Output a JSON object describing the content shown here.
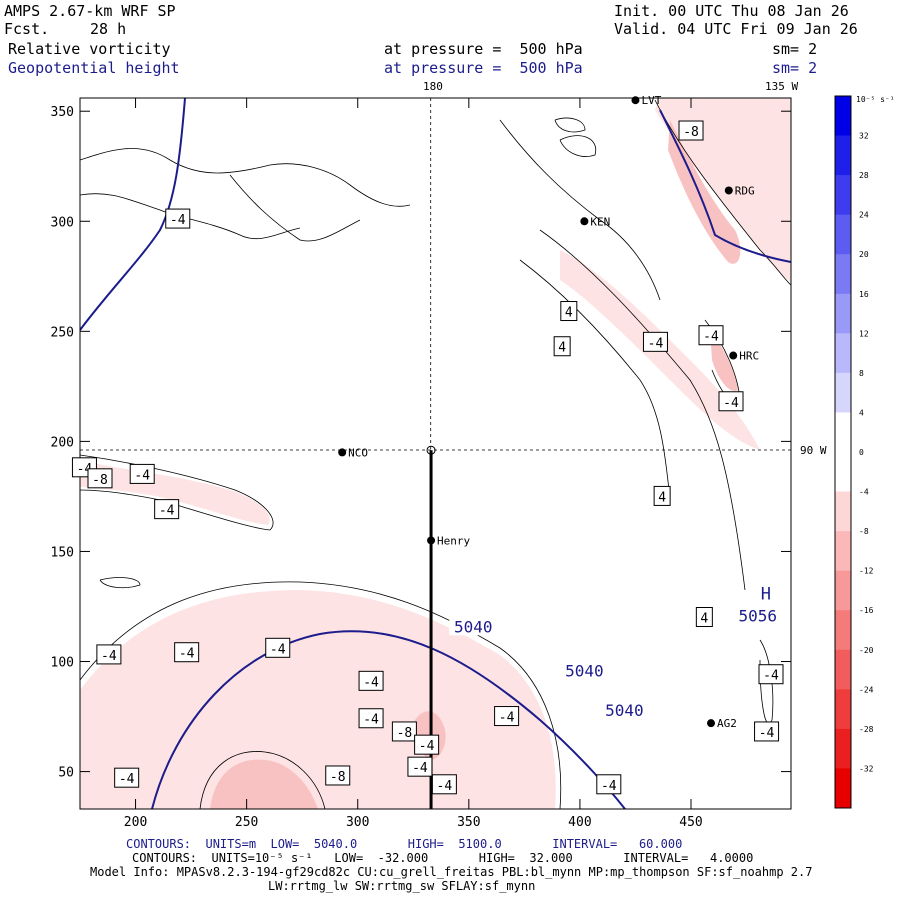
{
  "header": {
    "model": "AMPS 2.67-km WRF SP",
    "fcst_label": "Fcst.",
    "fcst_value": "28 h",
    "init": "Init. 00 UTC Thu 08 Jan 26",
    "valid": "Valid. 04 UTC Fri 09 Jan 26",
    "field1": "Relative vorticity",
    "field1_level": "at pressure =  500 hPa",
    "field1_sm": "sm= 2",
    "field2": "Geopotential height",
    "field2_level": "at pressure =  500 hPa",
    "field2_sm": "sm= 2"
  },
  "map_labels": {
    "lon_180": "180",
    "lon_135w": "135 W",
    "lon_90w": "90 W"
  },
  "stations": [
    {
      "name": "LVT",
      "x": 425,
      "y": 355
    },
    {
      "name": "RDG",
      "x": 467,
      "y": 314
    },
    {
      "name": "KEN",
      "x": 402,
      "y": 300
    },
    {
      "name": "NCO",
      "x": 293,
      "y": 195
    },
    {
      "name": "Henry",
      "x": 333,
      "y": 155
    },
    {
      "name": "HRC",
      "x": 469,
      "y": 239
    },
    {
      "name": "AG2",
      "x": 459,
      "y": 72
    }
  ],
  "colorbar": {
    "unit_label": "10⁻⁵ s⁻¹",
    "ticks": [
      "32",
      "28",
      "24",
      "20",
      "16",
      "12",
      "8",
      "4",
      "0",
      "-4",
      "-8",
      "-12",
      "-16",
      "-20",
      "-24",
      "-28",
      "-32"
    ],
    "colors": [
      "#0000e6",
      "#1f1fea",
      "#3d3dee",
      "#5c5cf2",
      "#7a7af5",
      "#9999f8",
      "#b8b8fb",
      "#d6d6fd",
      "#ffffff",
      "#ffffff",
      "#fdd6d6",
      "#fbb8b8",
      "#f89999",
      "#f57a7a",
      "#f25c5c",
      "#ee3d3d",
      "#ea1f1f",
      "#e60000"
    ]
  },
  "footer": {
    "line1_label": "CONTOURS:  UNITS=m  LOW=  5040.0       HIGH=  5100.0       INTERVAL=   60.000",
    "line2_label": "CONTOURS:  UNITS=10⁻⁵ s⁻¹   LOW=  -32.000       HIGH=  32.000       INTERVAL=   4.0000",
    "line3": "Model Info: MPASv8.2.3-194-gf29cd82c CU:cu_grell_freitas PBL:bl_mynn MP:mp_thompson SF:sf_noahmp 2.7",
    "line4": "LW:rrtmg_lw SW:rrtmg_sw SFLAY:sf_mynn"
  },
  "chart_data": {
    "type": "contour_map",
    "x_range": [
      175,
      495
    ],
    "y_range": [
      33,
      356
    ],
    "x_ticks": [
      200,
      250,
      300,
      350,
      400,
      450
    ],
    "y_ticks": [
      50,
      100,
      150,
      200,
      250,
      300,
      350
    ],
    "x_tick_labels": [
      "200",
      "250",
      "300",
      "350",
      "400",
      "450"
    ],
    "y_tick_labels": [
      "50",
      "100",
      "150",
      "200",
      "250",
      "300",
      "350"
    ],
    "cross_section": {
      "x": 333,
      "y_from": 33,
      "y_to": 196
    },
    "dashed_lon_line_x": 333,
    "dashed_lat_line_y": 195,
    "height_labels": [
      {
        "text": "5040",
        "x": 352,
        "y": 116
      },
      {
        "text": "5040",
        "x": 402,
        "y": 96
      },
      {
        "text": "5040",
        "x": 420,
        "y": 78
      }
    ],
    "high_center": {
      "letter": "H",
      "value": "5056",
      "x": 485,
      "y": 131,
      "x2": 488,
      "y2": 121
    },
    "vort_labels": [
      {
        "t": "-4",
        "x": 177,
        "y": 188
      },
      {
        "t": "-8",
        "x": 184,
        "y": 183
      },
      {
        "t": "-4",
        "x": 203,
        "y": 185
      },
      {
        "t": "-4",
        "x": 214,
        "y": 169
      },
      {
        "t": "-4",
        "x": 219,
        "y": 301
      },
      {
        "t": "4",
        "x": 395,
        "y": 259
      },
      {
        "t": "4",
        "x": 392,
        "y": 243
      },
      {
        "t": "-4",
        "x": 434,
        "y": 245
      },
      {
        "t": "-4",
        "x": 459,
        "y": 248
      },
      {
        "t": "-4",
        "x": 468,
        "y": 218
      },
      {
        "t": "4",
        "x": 437,
        "y": 175
      },
      {
        "t": "-8",
        "x": 450,
        "y": 341
      },
      {
        "t": "4",
        "x": 456,
        "y": 120
      },
      {
        "t": "-4",
        "x": 188,
        "y": 103
      },
      {
        "t": "-4",
        "x": 223,
        "y": 104
      },
      {
        "t": "-4",
        "x": 264,
        "y": 106
      },
      {
        "t": "-4",
        "x": 306,
        "y": 91
      },
      {
        "t": "-4",
        "x": 306,
        "y": 74
      },
      {
        "t": "-8",
        "x": 321,
        "y": 68
      },
      {
        "t": "-4",
        "x": 331,
        "y": 62
      },
      {
        "t": "-4",
        "x": 328,
        "y": 52
      },
      {
        "t": "-8",
        "x": 291,
        "y": 48
      },
      {
        "t": "-4",
        "x": 196,
        "y": 47
      },
      {
        "t": "-4",
        "x": 339,
        "y": 44
      },
      {
        "t": "-4",
        "x": 367,
        "y": 75
      },
      {
        "t": "-4",
        "x": 413,
        "y": 44
      },
      {
        "t": "-4",
        "x": 486,
        "y": 94
      },
      {
        "t": "-4",
        "x": 484,
        "y": 68
      }
    ]
  }
}
